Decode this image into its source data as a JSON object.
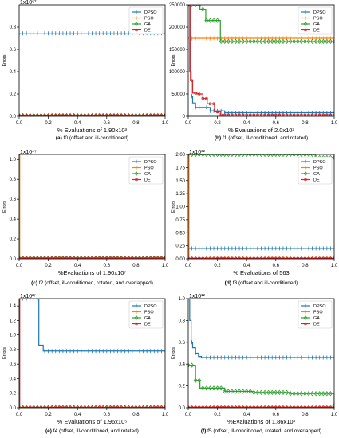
{
  "legend_labels": [
    "DPSO",
    "PSO",
    "GA",
    "DE"
  ],
  "colors": {
    "DPSO": "#1f77b4",
    "PSO": "#ff7f0e",
    "GA": "#2ca02c",
    "DE": "#d62728"
  },
  "chart_data": [
    {
      "type": "line",
      "caption_label": "(a)",
      "caption_text": "f0 (offset and ill-conditioned)",
      "xlabel": "% Evaluations of 1.90x10³",
      "ylabel": "Errors",
      "exponent": "1x10⁵²",
      "xlim": [
        0,
        1
      ],
      "ylim": [
        0,
        1
      ],
      "xticks": [
        0.0,
        0.2,
        0.4,
        0.6,
        0.8,
        1.0
      ],
      "xtick_labels": [
        "0.0",
        "0.2",
        "0.4",
        "0.6",
        "0.8",
        "1.0"
      ],
      "yticks": [
        0.0,
        0.2,
        0.4,
        0.6,
        0.8
      ],
      "ytick_labels": [
        "0.0",
        "0.2",
        "0.4",
        "0.6",
        "0.8"
      ],
      "legend": "top-right",
      "series": [
        {
          "name": "DPSO",
          "x": [
            0,
            1
          ],
          "y": [
            0.745,
            0.745
          ]
        },
        {
          "name": "PSO",
          "x": [
            0,
            1
          ],
          "y": [
            0.008,
            0.008
          ]
        },
        {
          "name": "GA",
          "x": [
            0,
            1
          ],
          "y": [
            0.008,
            0.008
          ]
        },
        {
          "name": "DE",
          "x": [
            0,
            1
          ],
          "y": [
            0.008,
            0.008
          ]
        }
      ]
    },
    {
      "type": "line",
      "caption_label": "(b)",
      "caption_text": "f1 (offset, ill-conditioned, and rotated)",
      "xlabel": "% Evaluations of 2.0x10³",
      "ylabel": "Errors",
      "exponent": "",
      "xlim": [
        0,
        1
      ],
      "ylim": [
        0,
        250000
      ],
      "xticks": [
        0.0,
        0.2,
        0.4,
        0.6,
        0.8,
        1.0
      ],
      "xtick_labels": [
        "0.0",
        "0.2",
        "0.4",
        "0.6",
        "0.8",
        "1.0"
      ],
      "yticks": [
        0,
        50000,
        100000,
        150000,
        200000,
        250000
      ],
      "ytick_labels": [
        "0",
        "50000",
        "100000",
        "150000",
        "200000",
        "250000"
      ],
      "legend": "top-right",
      "series": [
        {
          "name": "DPSO",
          "x": [
            0,
            0.01,
            0.02,
            0.03,
            0.05,
            0.08,
            0.15,
            0.25,
            1.0
          ],
          "y": [
            250000,
            100000,
            45000,
            30000,
            20000,
            20000,
            12000,
            8000,
            7000
          ]
        },
        {
          "name": "PSO",
          "x": [
            0,
            1
          ],
          "y": [
            175000,
            175000
          ]
        },
        {
          "name": "GA",
          "x": [
            0,
            0.08,
            0.12,
            0.2,
            0.22,
            1.0
          ],
          "y": [
            250000,
            240000,
            215000,
            215000,
            168000,
            168000
          ]
        },
        {
          "name": "DE",
          "x": [
            0,
            0.015,
            0.03,
            0.06,
            0.1,
            0.13,
            0.18,
            0.22,
            1.0
          ],
          "y": [
            250000,
            80000,
            52000,
            50000,
            40000,
            28000,
            10000,
            3000,
            2000
          ]
        }
      ]
    },
    {
      "type": "line",
      "caption_label": "(c)",
      "caption_text": "f2 (offset, ill-conditioned, rotated, and overlapped)",
      "xlabel": "%Evaluations of 1.90x10⁷",
      "ylabel": "Errors",
      "exponent": "1x10⁴⁷",
      "xlim": [
        0,
        1
      ],
      "ylim": [
        0,
        1.05
      ],
      "xticks": [
        0.0,
        0.2,
        0.4,
        0.6,
        0.8,
        1.0
      ],
      "xtick_labels": [
        "0.0",
        "0.2",
        "0.4",
        "0.6",
        "0.8",
        "1.0"
      ],
      "yticks": [
        0.0,
        0.2,
        0.4,
        0.6,
        0.8,
        1.0
      ],
      "ytick_labels": [
        "0.0",
        "0.2",
        "0.4",
        "0.6",
        "0.8",
        "1.0"
      ],
      "legend": "top-right",
      "series": [
        {
          "name": "DPSO",
          "x": [
            0,
            1
          ],
          "y": [
            0.008,
            0.008
          ]
        },
        {
          "name": "PSO",
          "x": [
            0,
            0.004,
            0.004,
            1
          ],
          "y": [
            1.05,
            1.05,
            0.008,
            0.008
          ]
        },
        {
          "name": "GA",
          "x": [
            0,
            1
          ],
          "y": [
            0.008,
            0.008
          ]
        },
        {
          "name": "DE",
          "x": [
            0,
            1
          ],
          "y": [
            0.008,
            0.008
          ]
        }
      ]
    },
    {
      "type": "line",
      "caption_label": "(d)",
      "caption_text": "f3 (offset and ill-conditioned)",
      "xlabel": "% Evaluations of 563",
      "ylabel": "Errors",
      "exponent": "1x10³²",
      "xlim": [
        0,
        1
      ],
      "ylim": [
        0,
        2.0
      ],
      "xticks": [
        0.0,
        0.2,
        0.4,
        0.6,
        0.8,
        1.0
      ],
      "xtick_labels": [
        "0.0",
        "0.2",
        "0.4",
        "0.6",
        "0.8",
        "1.0"
      ],
      "yticks": [
        0.0,
        0.25,
        0.5,
        0.75,
        1.0,
        1.25,
        1.5,
        1.75,
        2.0
      ],
      "ytick_labels": [
        "0.00",
        "0.25",
        "0.50",
        "0.75",
        "1.00",
        "1.25",
        "1.50",
        "1.75",
        "2.00"
      ],
      "legend": "top-right",
      "series": [
        {
          "name": "DPSO",
          "x": [
            0,
            1
          ],
          "y": [
            0.2,
            0.2
          ]
        },
        {
          "name": "PSO",
          "x": [
            0,
            0.005,
            0.005,
            1
          ],
          "y": [
            2.0,
            2.0,
            0.01,
            0.01
          ]
        },
        {
          "name": "GA",
          "x": [
            0,
            0.87,
            0.87,
            1
          ],
          "y": [
            2.0,
            2.0,
            1.94,
            1.94
          ]
        },
        {
          "name": "DE",
          "x": [
            0,
            1
          ],
          "y": [
            0.01,
            0.01
          ]
        }
      ]
    },
    {
      "type": "line",
      "caption_label": "(e)",
      "caption_text": "f4 (offset, ill-conditioned, and rotated)",
      "xlabel": "% Evaluations of 1.96x10⁵",
      "ylabel": "Errors",
      "exponent": "1x10²⁷",
      "xlim": [
        0,
        1
      ],
      "ylim": [
        0,
        1.5
      ],
      "xticks": [
        0.0,
        0.2,
        0.4,
        0.6,
        0.8,
        1.0
      ],
      "xtick_labels": [
        "0.0",
        "0.2",
        "0.4",
        "0.6",
        "0.8",
        "1.0"
      ],
      "yticks": [
        0.0,
        0.2,
        0.4,
        0.6,
        0.8,
        1.0,
        1.2,
        1.4
      ],
      "ytick_labels": [
        "0.0",
        "0.2",
        "0.4",
        "0.6",
        "0.8",
        "1.0",
        "1.2",
        "1.4"
      ],
      "legend": "top-right",
      "series": [
        {
          "name": "DPSO",
          "x": [
            0,
            0.135,
            0.135,
            0.165,
            0.165,
            1
          ],
          "y": [
            1.5,
            1.5,
            0.86,
            0.86,
            0.78,
            0.78
          ]
        },
        {
          "name": "PSO",
          "x": [
            0,
            1
          ],
          "y": [
            0.005,
            0.005
          ]
        },
        {
          "name": "GA",
          "x": [
            0,
            1
          ],
          "y": [
            0.005,
            0.005
          ]
        },
        {
          "name": "DE",
          "x": [
            0,
            0.004,
            0.004,
            1
          ],
          "y": [
            1.5,
            1.5,
            0.005,
            0.005
          ]
        }
      ]
    },
    {
      "type": "line",
      "caption_label": "(f)",
      "caption_text": "f5 (offset, ill-conditioned, rotated, and overlapped)",
      "xlabel": "%Evaluations of 1.86x10³",
      "ylabel": "Errors",
      "exponent": "1x10¹²",
      "xlim": [
        0,
        1
      ],
      "ylim": [
        0,
        1.0
      ],
      "xticks": [
        0.0,
        0.2,
        0.4,
        0.6,
        0.8,
        1.0
      ],
      "xtick_labels": [
        "0.0",
        "0.2",
        "0.4",
        "0.6",
        "0.8",
        "1.0"
      ],
      "yticks": [
        0.0,
        0.2,
        0.4,
        0.6,
        0.8,
        1.0
      ],
      "ytick_labels": [
        "0.0",
        "0.2",
        "0.4",
        "0.6",
        "0.8",
        "1.0"
      ],
      "legend": "top-right",
      "series": [
        {
          "name": "DPSO",
          "x": [
            0,
            0.01,
            0.02,
            0.03,
            0.05,
            0.07,
            0.09,
            1
          ],
          "y": [
            1.0,
            0.8,
            0.6,
            0.55,
            0.5,
            0.47,
            0.46,
            0.46
          ]
        },
        {
          "name": "PSO",
          "x": [
            0,
            1
          ],
          "y": [
            0.005,
            0.005
          ]
        },
        {
          "name": "GA",
          "x": [
            0,
            0.05,
            0.05,
            0.08,
            0.08,
            0.25,
            0.25,
            0.45,
            0.45,
            0.7,
            0.7,
            0.995,
            1
          ],
          "y": [
            0.39,
            0.39,
            0.25,
            0.25,
            0.18,
            0.18,
            0.15,
            0.15,
            0.14,
            0.14,
            0.13,
            0.13,
            0.02
          ]
        },
        {
          "name": "DE",
          "x": [
            0,
            1
          ],
          "y": [
            0.005,
            0.005
          ]
        }
      ]
    }
  ]
}
